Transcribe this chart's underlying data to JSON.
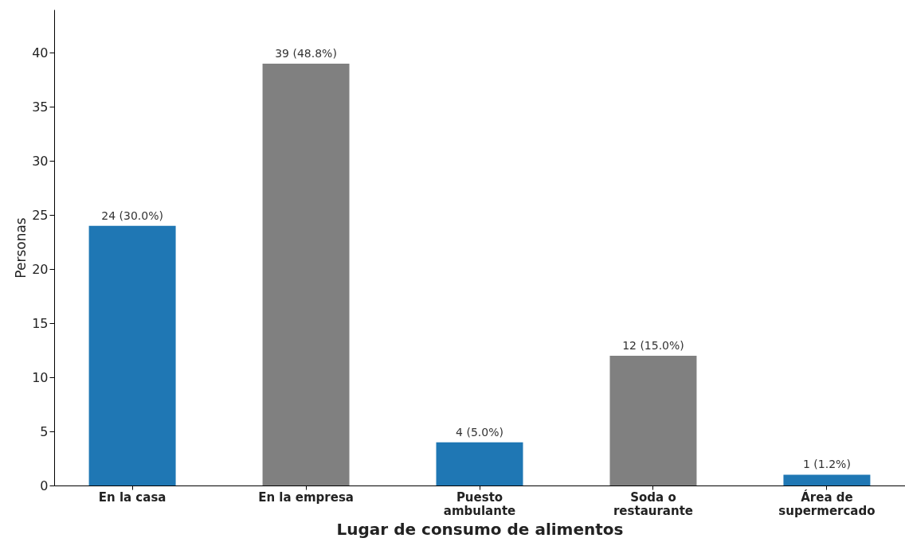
{
  "chart_data": {
    "type": "bar",
    "xlabel": "Lugar de consumo de alimentos",
    "ylabel": "Personas",
    "categories": [
      "En la casa",
      "En la empresa",
      "Puesto\nambulante",
      "Soda o\nrestaurante",
      "Área de\nsupermercado"
    ],
    "values": [
      24,
      39,
      4,
      12,
      1
    ],
    "colors": [
      "#1f77b4",
      "#808080",
      "#1f77b4",
      "#808080",
      "#1f77b4"
    ],
    "value_labels": [
      "24 (30.0%)",
      "39 (48.8%)",
      "4 (5.0%)",
      "12 (15.0%)",
      "1 (1.2%)"
    ],
    "ylim": [
      0,
      44
    ],
    "yticks": [
      0,
      5,
      10,
      15,
      20,
      25,
      30,
      35,
      40
    ],
    "grid": false
  }
}
